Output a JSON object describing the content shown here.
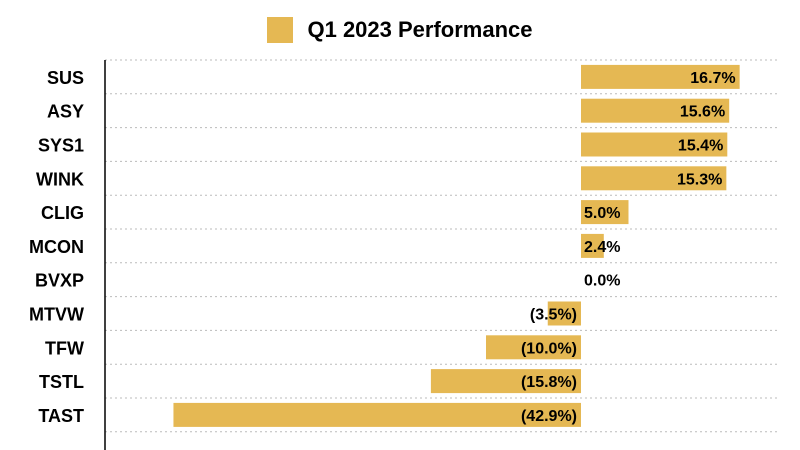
{
  "chart_data": {
    "type": "bar",
    "orientation": "horizontal",
    "categories": [
      "SUS",
      "ASY",
      "SYS1",
      "WINK",
      "CLIG",
      "MCON",
      "BVXP",
      "MTVW",
      "TFW",
      "TSTL",
      "TAST"
    ],
    "series": [
      {
        "name": "Q1 2023 Performance",
        "values": [
          16.7,
          15.6,
          15.4,
          15.3,
          5.0,
          2.4,
          0.0,
          -3.5,
          -10.0,
          -15.8,
          -42.9
        ],
        "labels": [
          "16.7%",
          "15.6%",
          "15.4%",
          "15.3%",
          "5.0%",
          "2.4%",
          "0.0%",
          "(3.5%)",
          "(10.0%)",
          "(15.8%)",
          "(42.9%)"
        ]
      }
    ],
    "xlim": [
      -43,
      17
    ],
    "grid": "horizontal dotted",
    "legend_position": "top-center",
    "colors": {
      "bar": "#E5B853",
      "grid": "#bbbbbb",
      "axis": "#000000"
    }
  }
}
